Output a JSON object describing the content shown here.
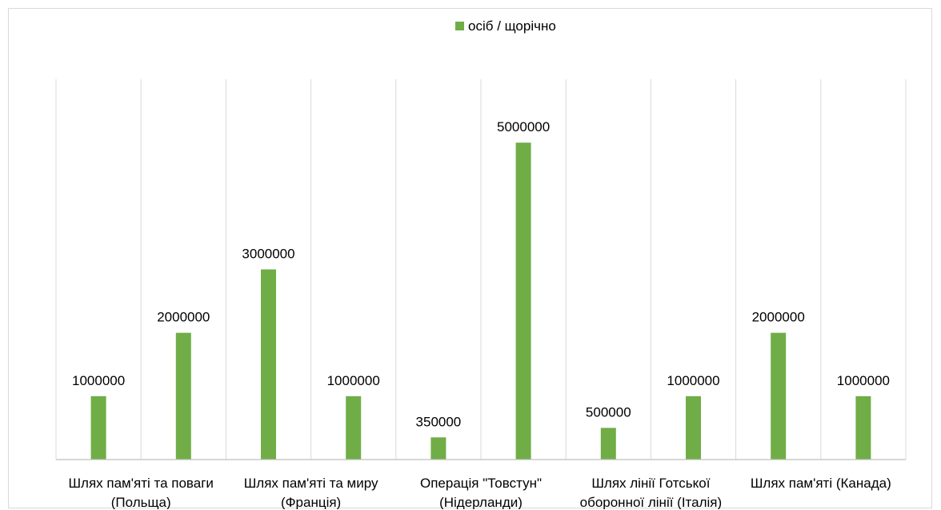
{
  "chart_data": {
    "type": "bar",
    "title": "",
    "xlabel": "",
    "ylabel": "",
    "legend_position": "top",
    "grid": "vertical",
    "categories": [
      "Шлях пам'яті та поваги (Польща)",
      "",
      "Шлях пам'яті та миру (Франція)",
      "",
      "Операція \"Товстун\" (Нідерланди)",
      "",
      "Шлях лінії Готської оборонної лінії (Італія)",
      "",
      "Шлях пам'яті (Канада)",
      ""
    ],
    "category_label_lines": [
      [
        "Шлях пам'яті та поваги",
        "(Польща)"
      ],
      [],
      [
        "Шлях пам'яті та миру",
        "(Франція)"
      ],
      [],
      [
        "Операція \"Товстун\"",
        "(Нідерланди)"
      ],
      [],
      [
        "Шлях лінії Готської",
        "оборонної лінії (Італія)"
      ],
      [],
      [
        "Шлях пам'яті (Канада)"
      ],
      []
    ],
    "series": [
      {
        "name": "осіб / щорічно",
        "color": "#70ad47",
        "values": [
          1000000,
          2000000,
          3000000,
          1000000,
          350000,
          5000000,
          500000,
          1000000,
          2000000,
          1000000
        ],
        "value_labels": [
          "1000000",
          "2000000",
          "3000000",
          "1000000",
          "350000",
          "5000000",
          "500000",
          "1000000",
          "2000000",
          "1000000"
        ]
      }
    ],
    "ylim": [
      0,
      6000000
    ],
    "colors": {
      "grid": "#d9d9d9",
      "axis": "#bfbfbf"
    }
  }
}
